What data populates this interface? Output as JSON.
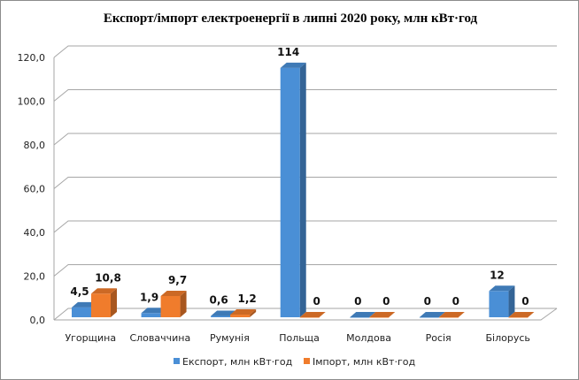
{
  "chart_data": {
    "type": "bar",
    "title": "Експорт/імпорт  електроенергії в липні 2020 року, млн кВт·год",
    "categories": [
      "Угорщина",
      "Словаччина",
      "Румунія",
      "Польща",
      "Молдова",
      "Росія",
      "Білорусь"
    ],
    "series": [
      {
        "name": "Експорт, млн кВт·год",
        "values": [
          4.5,
          1.9,
          0.6,
          114,
          0,
          0,
          12
        ],
        "labels": [
          "4,5",
          "1,9",
          "0,6",
          "114",
          "0",
          "0",
          "12"
        ],
        "color": "#4a8fd6"
      },
      {
        "name": "Імпорт, млн кВт·год",
        "values": [
          10.8,
          9.7,
          1.2,
          0,
          0,
          0,
          0
        ],
        "labels": [
          "10,8",
          "9,7",
          "1,2",
          "0",
          "0",
          "0",
          "0"
        ],
        "color": "#f07c2c"
      }
    ],
    "yticks": [
      "0,0",
      "20,0",
      "40,0",
      "60,0",
      "80,0",
      "100,0",
      "120,0"
    ],
    "ylim": [
      0,
      120
    ],
    "grid": true,
    "legend": "bottom",
    "style": "3d-column"
  }
}
